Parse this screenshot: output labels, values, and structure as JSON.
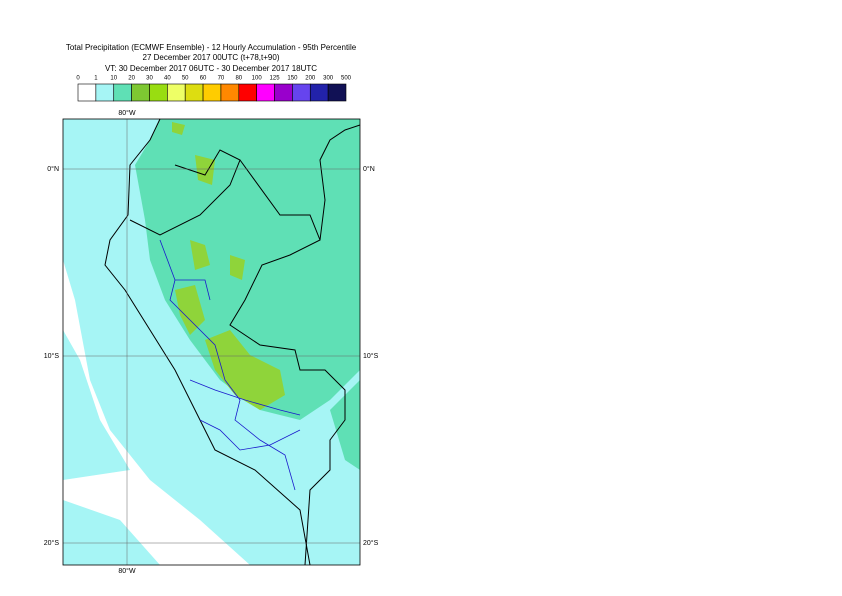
{
  "title_lines": [
    "Total Precipitation (ECMWF Ensemble) - 12 Hourly Accumulation - 95th Percentile",
    "27 December 2017 00UTC (t+78,t+90)",
    "VT: 30 December 2017 06UTC - 30 December 2017 18UTC"
  ],
  "legend": {
    "labels": [
      0,
      1,
      10,
      20,
      30,
      40,
      50,
      60,
      70,
      80,
      100,
      125,
      150,
      200,
      300,
      500
    ],
    "colors": [
      "#ffffff",
      "#a6f5f5",
      "#5fe0b5",
      "#7ec832",
      "#99dd11",
      "#eeff66",
      "#dddd11",
      "#ffcc00",
      "#ff8800",
      "#ff0000",
      "#ff00ff",
      "#9900cc",
      "#6644ee",
      "#2222aa",
      "#111155"
    ]
  },
  "axes": {
    "lon_top": "80°W",
    "lon_bottom": "80°W",
    "lat_left": [
      "0°N",
      "10°S",
      "20°S"
    ],
    "lat_right": [
      "0°N",
      "10°S",
      "20°S"
    ]
  }
}
